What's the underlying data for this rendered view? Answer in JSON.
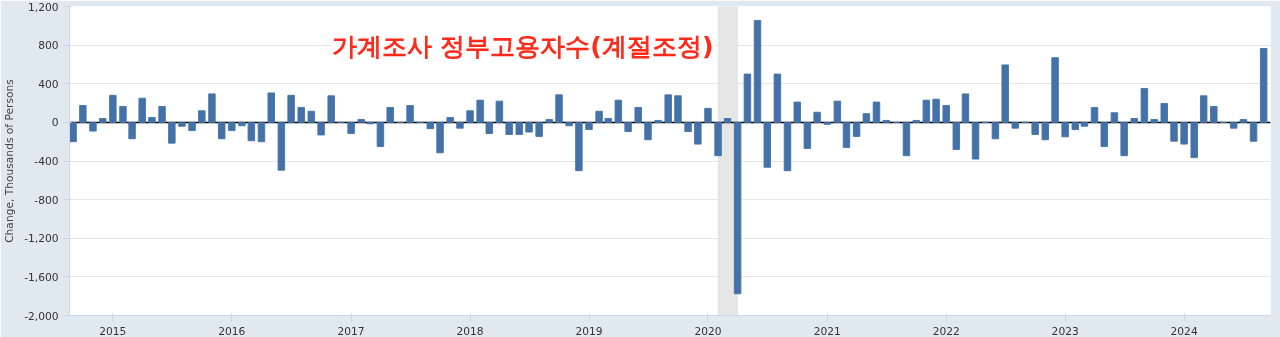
{
  "chart_data": {
    "type": "bar",
    "title": "가계조사 정부고용자수(계절조정)",
    "ylabel": "Change, Thousands of Persons",
    "color": "#4472a8",
    "x": [
      "2014-09",
      "2014-10",
      "2014-11",
      "2014-12",
      "2015-01",
      "2015-02",
      "2015-03",
      "2015-04",
      "2015-05",
      "2015-06",
      "2015-07",
      "2015-08",
      "2015-09",
      "2015-10",
      "2015-11",
      "2015-12",
      "2016-01",
      "2016-02",
      "2016-03",
      "2016-04",
      "2016-05",
      "2016-06",
      "2016-07",
      "2016-08",
      "2016-09",
      "2016-10",
      "2016-11",
      "2016-12",
      "2017-01",
      "2017-02",
      "2017-03",
      "2017-04",
      "2017-05",
      "2017-06",
      "2017-07",
      "2017-08",
      "2017-09",
      "2017-10",
      "2017-11",
      "2017-12",
      "2018-01",
      "2018-02",
      "2018-03",
      "2018-04",
      "2018-05",
      "2018-06",
      "2018-07",
      "2018-08",
      "2018-09",
      "2018-10",
      "2018-11",
      "2018-12",
      "2019-01",
      "2019-02",
      "2019-03",
      "2019-04",
      "2019-05",
      "2019-06",
      "2019-07",
      "2019-08",
      "2019-09",
      "2019-10",
      "2019-11",
      "2019-12",
      "2020-01",
      "2020-02",
      "2020-03",
      "2020-04",
      "2020-05",
      "2020-06",
      "2020-07",
      "2020-08",
      "2020-09",
      "2020-10",
      "2020-11",
      "2020-12",
      "2021-01",
      "2021-02",
      "2021-03",
      "2021-04",
      "2021-05",
      "2021-06",
      "2021-07",
      "2021-08",
      "2021-09",
      "2021-10",
      "2021-11",
      "2021-12",
      "2022-01",
      "2022-02",
      "2022-03",
      "2022-04",
      "2022-05",
      "2022-06",
      "2022-07",
      "2022-08",
      "2022-09",
      "2022-10",
      "2022-11",
      "2022-12",
      "2023-01",
      "2023-02",
      "2023-03",
      "2023-04",
      "2023-05",
      "2023-06",
      "2023-07",
      "2023-08",
      "2023-09",
      "2023-10",
      "2023-11",
      "2023-12",
      "2024-01",
      "2024-02",
      "2024-03",
      "2024-04",
      "2024-05",
      "2024-06",
      "2024-07",
      "2024-08",
      "2024-09"
    ],
    "values": [
      -200,
      175,
      -90,
      40,
      280,
      165,
      -170,
      250,
      50,
      165,
      -215,
      -40,
      -85,
      120,
      295,
      -170,
      -85,
      -35,
      -190,
      -200,
      305,
      -495,
      280,
      155,
      115,
      -130,
      275,
      0,
      -115,
      30,
      -15,
      -250,
      155,
      0,
      175,
      0,
      -65,
      -315,
      50,
      -60,
      120,
      230,
      -115,
      220,
      -125,
      -125,
      -100,
      -145,
      30,
      285,
      -35,
      -500,
      -75,
      115,
      40,
      230,
      -95,
      155,
      -180,
      20,
      285,
      275,
      -95,
      -225,
      145,
      -345,
      40,
      -1775,
      500,
      1055,
      -465,
      500,
      -500,
      210,
      -270,
      105,
      -20,
      220,
      -260,
      -145,
      90,
      210,
      20,
      0,
      -345,
      20,
      230,
      240,
      175,
      -280,
      295,
      -380,
      0,
      -170,
      595,
      -60,
      0,
      -125,
      -180,
      670,
      -150,
      -75,
      -40,
      155,
      -250,
      100,
      -345,
      40,
      350,
      30,
      195,
      -195,
      -225,
      -365,
      275,
      165,
      0,
      -60,
      30,
      -195,
      765
    ],
    "xlim": [
      "2014-08-21",
      "2024-09-22"
    ],
    "xticks": [
      "2015",
      "2016",
      "2017",
      "2018",
      "2019",
      "2020",
      "2021",
      "2022",
      "2023",
      "2024"
    ],
    "ylim": [
      -2000,
      1200
    ],
    "yticks": [
      {
        "value": -2000,
        "label": "-2,000"
      },
      {
        "value": -1600,
        "label": "-1,600"
      },
      {
        "value": -1200,
        "label": "-1,200"
      },
      -800,
      -400,
      0,
      400,
      800,
      {
        "value": 1200,
        "label": "1,200"
      }
    ],
    "grid": "y",
    "bands": [
      {
        "axis": "x",
        "from": "2020-02",
        "to": "2020-04",
        "color": "#e6e6e6"
      }
    ],
    "ref_lines": [
      {
        "axis": "y",
        "value": 0,
        "color": "#000000"
      }
    ]
  }
}
